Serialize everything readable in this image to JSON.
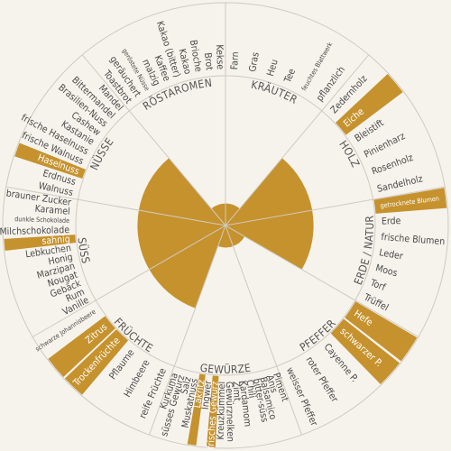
{
  "colors": {
    "accent": "#c6922e",
    "background": "#f6f3ec",
    "line": "#cfcac0",
    "text": "#4a4a4a"
  },
  "categories": [
    {
      "name": "KRÄUTER",
      "level": 0.2,
      "terms": [
        {
          "text": "Farn",
          "on": false,
          "small": false
        },
        {
          "text": "Gras",
          "on": false,
          "small": false
        },
        {
          "text": "Heu",
          "on": false,
          "small": false
        },
        {
          "text": "Tee",
          "on": false,
          "small": false
        },
        {
          "text": "feuchtes Blattwerk",
          "on": false,
          "small": true
        },
        {
          "text": "pflanzlich",
          "on": false,
          "small": false
        }
      ]
    },
    {
      "name": "HOLZ",
      "level": 0.8,
      "terms": [
        {
          "text": "Zedernholz",
          "on": false,
          "small": false
        },
        {
          "text": "Eiche",
          "on": true,
          "small": false
        },
        {
          "text": "Bleistift",
          "on": false,
          "small": false
        },
        {
          "text": "Pinienharz",
          "on": false,
          "small": false
        },
        {
          "text": "Rosenholz",
          "on": false,
          "small": false
        },
        {
          "text": "Sandelholz",
          "on": false,
          "small": false
        }
      ]
    },
    {
      "name": "ERDE / NATUR",
      "level": 0.8,
      "terms": [
        {
          "text": "getrocknete Blumen",
          "on": true,
          "small": true
        },
        {
          "text": "Erde",
          "on": false,
          "small": false
        },
        {
          "text": "frische Blumen",
          "on": false,
          "small": false
        },
        {
          "text": "Leder",
          "on": false,
          "small": false
        },
        {
          "text": "Moos",
          "on": false,
          "small": false
        },
        {
          "text": "Torf",
          "on": false,
          "small": false
        },
        {
          "text": "Trüffel",
          "on": false,
          "small": false
        }
      ]
    },
    {
      "name": "PFEFFER",
      "level": 0.2,
      "terms": [
        {
          "text": "Hefe",
          "on": true,
          "small": false
        },
        {
          "text": "schwarzer P.",
          "on": true,
          "small": false
        },
        {
          "text": "Cayenne P.",
          "on": false,
          "small": false
        },
        {
          "text": "roter Pfeffer",
          "on": false,
          "small": false
        },
        {
          "text": "weisser Pfeffer",
          "on": false,
          "small": false
        }
      ]
    },
    {
      "name": "GEWÜRZE",
      "level": 0.2,
      "terms": [
        {
          "text": "Piment",
          "on": false,
          "small": false
        },
        {
          "text": "Anis",
          "on": false,
          "small": false
        },
        {
          "text": "Balsamico",
          "on": false,
          "small": false
        },
        {
          "text": "bitter-süss",
          "on": false,
          "small": false
        },
        {
          "text": "Chili",
          "on": false,
          "small": false
        },
        {
          "text": "Kardamom",
          "on": false,
          "small": false
        },
        {
          "text": "Zimt",
          "on": false,
          "small": false
        },
        {
          "text": "Gewürznelken",
          "on": false,
          "small": false
        },
        {
          "text": "Kreuzkümmel",
          "on": false,
          "small": false
        },
        {
          "text": "frisches Gewürz",
          "on": true,
          "small": false
        },
        {
          "text": "Ingwer",
          "on": false,
          "small": false
        },
        {
          "text": "Lakritz",
          "on": true,
          "small": false
        },
        {
          "text": "Muskatnuss",
          "on": false,
          "small": false
        },
        {
          "text": "Salz",
          "on": false,
          "small": false
        },
        {
          "text": "süsses Gewürz",
          "on": false,
          "small": false
        },
        {
          "text": "Kurkuma",
          "on": false,
          "small": false
        }
      ]
    },
    {
      "name": "FRÜCHTE",
      "level": 0.8,
      "terms": [
        {
          "text": "reife Früchte",
          "on": false,
          "small": false
        },
        {
          "text": "Himbeere",
          "on": false,
          "small": false
        },
        {
          "text": "Pflaume",
          "on": false,
          "small": false
        },
        {
          "text": "Trockenfrüchte",
          "on": true,
          "small": false
        },
        {
          "text": "Zitrus",
          "on": true,
          "small": false
        },
        {
          "text": "schwarze Johannisbeere",
          "on": false,
          "small": true
        }
      ]
    },
    {
      "name": "SÜSS",
      "level": 0.8,
      "terms": [
        {
          "text": "Vanille",
          "on": false,
          "small": false
        },
        {
          "text": "Rum",
          "on": false,
          "small": false
        },
        {
          "text": "Gebäck",
          "on": false,
          "small": false
        },
        {
          "text": "Nougat",
          "on": false,
          "small": false
        },
        {
          "text": "Marzipan",
          "on": false,
          "small": false
        },
        {
          "text": "Honig",
          "on": false,
          "small": false
        },
        {
          "text": "Lebkuchen",
          "on": false,
          "small": false
        },
        {
          "text": "sahnig",
          "on": true,
          "small": false
        },
        {
          "text": "Milchschokolade",
          "on": false,
          "small": false
        },
        {
          "text": "dunkle Schokolade",
          "on": false,
          "small": true
        },
        {
          "text": "Karamel",
          "on": false,
          "small": false
        },
        {
          "text": "brauner Zucker",
          "on": false,
          "small": false
        }
      ]
    },
    {
      "name": "NÜSSE",
      "level": 0.8,
      "terms": [
        {
          "text": "Walnuss",
          "on": false,
          "small": false
        },
        {
          "text": "Erdnuss",
          "on": false,
          "small": false
        },
        {
          "text": "Haselnuss",
          "on": true,
          "small": false
        },
        {
          "text": "frische Walnuss",
          "on": false,
          "small": false
        },
        {
          "text": "frische Haselnuss",
          "on": false,
          "small": false
        },
        {
          "text": "Kastanie",
          "on": false,
          "small": false
        },
        {
          "text": "Cashew",
          "on": false,
          "small": false
        },
        {
          "text": "Brasilien-Nuss",
          "on": false,
          "small": false
        },
        {
          "text": "Bittermandel",
          "on": false,
          "small": false
        },
        {
          "text": "Mandel",
          "on": false,
          "small": false
        }
      ]
    },
    {
      "name": "RÖSTAROMEN",
      "level": 0.2,
      "terms": [
        {
          "text": "Toastbrot",
          "on": false,
          "small": false
        },
        {
          "text": "geräuchert",
          "on": false,
          "small": false
        },
        {
          "text": "geröstete Nüsse",
          "on": false,
          "small": true
        },
        {
          "text": "malzig",
          "on": false,
          "small": false
        },
        {
          "text": "Kaffee",
          "on": false,
          "small": false
        },
        {
          "text": "Kakao (bitter)",
          "on": false,
          "small": false
        },
        {
          "text": "Kakao",
          "on": false,
          "small": false
        },
        {
          "text": "Brioche",
          "on": false,
          "small": false
        },
        {
          "text": "Brot",
          "on": false,
          "small": false
        },
        {
          "text": "Kekse",
          "on": false,
          "small": false
        }
      ]
    }
  ]
}
